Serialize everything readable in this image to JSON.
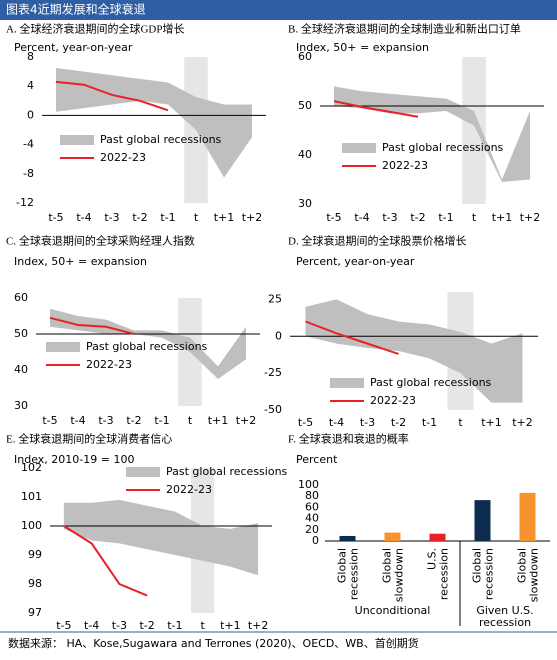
{
  "header": {
    "title": "图表4近期发展和全球衰退"
  },
  "chart_data": [
    {
      "type": "band",
      "title": "A. 全球经济衰退期间的全球GDP增长",
      "ylabel": "Percent, year-on-year",
      "categories": [
        "t-5",
        "t-4",
        "t-3",
        "t-2",
        "t-1",
        "t",
        "t+1",
        "t+2"
      ],
      "ylim": [
        -12,
        8
      ],
      "yticks": [
        -12,
        -8,
        -4,
        0,
        4,
        8
      ],
      "refline": 0,
      "highlight": "t",
      "series": [
        {
          "name": "Past global recessions",
          "color": "#bfbfbf",
          "upper": [
            6.5,
            6,
            5.5,
            5,
            4.5,
            2.5,
            1.5,
            1.5
          ],
          "lower": [
            0.5,
            1,
            1.5,
            2,
            1.5,
            -2,
            -8.5,
            -3
          ]
        },
        {
          "name": "2022-23",
          "color": "#e8202a",
          "values": [
            4.6,
            4.2,
            2.8,
            2,
            0.7,
            null,
            null,
            null
          ]
        }
      ]
    },
    {
      "type": "band",
      "title": "B. 全球经济衰退期间的全球制造业和新出口订单",
      "ylabel": "Index, 50+ = expansion",
      "categories": [
        "t-5",
        "t-4",
        "t-3",
        "t-2",
        "t-1",
        "t",
        "t+1",
        "t+2"
      ],
      "ylim": [
        30,
        60
      ],
      "yticks": [
        30,
        40,
        50,
        60
      ],
      "refline": 50,
      "highlight": "t",
      "series": [
        {
          "name": "Past global recessions",
          "color": "#bfbfbf",
          "upper": [
            54,
            53,
            52.5,
            52,
            51.5,
            49,
            35,
            49
          ],
          "lower": [
            50,
            49.5,
            48.5,
            48.5,
            49,
            46,
            34.5,
            35
          ]
        },
        {
          "name": "2022-23",
          "color": "#e8202a",
          "values": [
            51,
            49.8,
            48.8,
            47.8,
            null,
            null,
            null,
            null
          ]
        }
      ]
    },
    {
      "type": "band",
      "title": "C. 全球衰退期间的全球采购经理人指数",
      "ylabel": "Index, 50+ = expansion",
      "categories": [
        "t-5",
        "t-4",
        "t-3",
        "t-2",
        "t-1",
        "t",
        "t+1",
        "t+2"
      ],
      "ylim": [
        30,
        60
      ],
      "yticks": [
        30,
        40,
        50,
        60
      ],
      "refline": 50,
      "highlight": "t",
      "series": [
        {
          "name": "Past global recessions",
          "color": "#bfbfbf",
          "upper": [
            57,
            55,
            54,
            51,
            51,
            49,
            41,
            52
          ],
          "lower": [
            52,
            51,
            50,
            50,
            49,
            45,
            37.5,
            43
          ]
        },
        {
          "name": "2022-23",
          "color": "#e8202a",
          "values": [
            54.5,
            52.5,
            52,
            50,
            null,
            null,
            null,
            null
          ]
        }
      ]
    },
    {
      "type": "band",
      "title": "D. 全球衰退期间的全球股票价格增长",
      "ylabel": "Percent, year-on-year",
      "categories": [
        "t-5",
        "t-4",
        "t-3",
        "t-2",
        "t-1",
        "t",
        "t+1",
        "t+2"
      ],
      "ylim": [
        -50,
        30
      ],
      "yticks": [
        -50,
        -25,
        0,
        25
      ],
      "refline": 0,
      "highlight": "t",
      "series": [
        {
          "name": "Past global recessions",
          "color": "#bfbfbf",
          "upper": [
            20,
            25,
            15,
            10,
            8,
            3,
            -5,
            2
          ],
          "lower": [
            0,
            -5,
            -8,
            -10,
            -15,
            -25,
            -45,
            -45
          ]
        },
        {
          "name": "2022-23",
          "color": "#e8202a",
          "values": [
            10,
            2,
            -5,
            -12,
            null,
            null,
            null,
            null
          ]
        }
      ]
    },
    {
      "type": "band",
      "title": "E. 全球衰退期间的全球消费者信心",
      "ylabel": "Index, 2010-19 = 100",
      "categories": [
        "t-5",
        "t-4",
        "t-3",
        "t-2",
        "t-1",
        "t",
        "t+1",
        "t+2"
      ],
      "ylim": [
        97,
        102
      ],
      "yticks": [
        97,
        98,
        99,
        100,
        101,
        102
      ],
      "refline": 100,
      "highlight": "t",
      "series": [
        {
          "name": "Past global recessions",
          "color": "#bfbfbf",
          "upper": [
            100.8,
            100.8,
            100.9,
            100.7,
            100.5,
            100,
            99.9,
            100.1
          ],
          "lower": [
            99.9,
            99.5,
            99.4,
            99.2,
            99,
            98.8,
            98.6,
            98.3
          ]
        },
        {
          "name": "2022-23",
          "color": "#e8202a",
          "values": [
            100,
            99.4,
            98,
            97.6,
            null,
            null,
            null,
            null
          ]
        }
      ]
    },
    {
      "type": "bar",
      "title": "F. 全球衰退和衰退的概率",
      "ylabel": "Percent",
      "ylim": [
        0,
        100
      ],
      "yticks": [
        0,
        20,
        40,
        60,
        80,
        100
      ],
      "groups": [
        {
          "name": [
            "Unconditional"
          ],
          "categories": [
            [
              "Global",
              "recession"
            ],
            [
              "Global",
              "slowdown"
            ],
            [
              "U.S.",
              "recession"
            ]
          ],
          "values": [
            9,
            15,
            13
          ],
          "colors": [
            "#0d2a4f",
            "#f7922d",
            "#e8202a"
          ]
        },
        {
          "name": [
            "Given U.S.",
            "recession"
          ],
          "categories": [
            [
              "Global",
              "recession"
            ],
            [
              "Global",
              "slowdown"
            ]
          ],
          "values": [
            73,
            86
          ],
          "colors": [
            "#0d2a4f",
            "#f7922d"
          ]
        }
      ]
    }
  ],
  "footer": {
    "source": "数据来源：  HA、Kose,Sugawara and Terrones (2020)、OECD、WB、首创期货"
  }
}
